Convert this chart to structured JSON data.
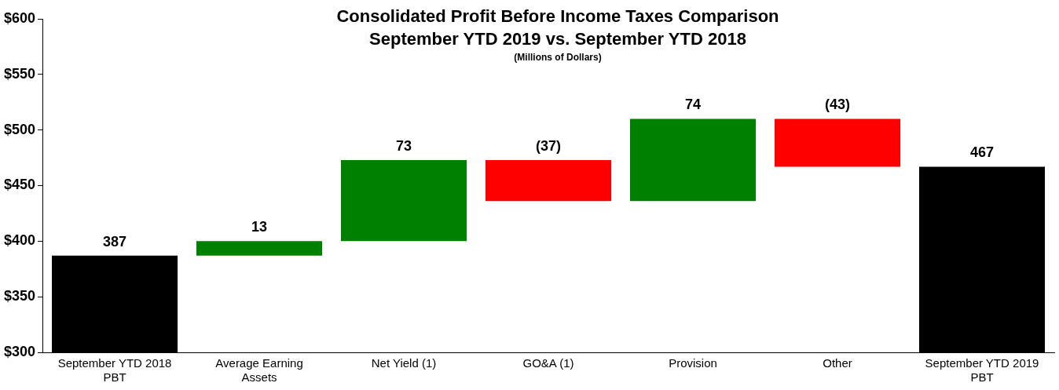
{
  "chart_data": {
    "type": "bar",
    "title": "Consolidated Profit Before Income Taxes Comparison",
    "subtitle": "September YTD 2019 vs. September YTD 2018",
    "annotations": [
      "(Millions of Dollars)"
    ],
    "categories": [
      "September YTD 2018 PBT",
      "Average Earning Assets",
      "Net Yield (1)",
      "GO&A (1)",
      "Provision",
      "Other",
      "September YTD 2019 PBT"
    ],
    "values": [
      387,
      13,
      73,
      -37,
      74,
      -43,
      467
    ],
    "base": [
      null,
      387,
      400,
      473,
      436,
      510,
      null
    ],
    "colors": [
      "#000000",
      "#008000",
      "#008000",
      "#ff0000",
      "#008000",
      "#ff0000",
      "#000000"
    ],
    "value_labels": [
      "387",
      "13",
      "73",
      "(37)",
      "74",
      "(43)",
      "467"
    ],
    "ylim": [
      300,
      600
    ],
    "yticks": [
      {
        "value": 300,
        "label": "$300"
      },
      {
        "value": 350,
        "label": "$350"
      },
      {
        "value": 400,
        "label": "$400"
      },
      {
        "value": 450,
        "label": "$450"
      },
      {
        "value": 500,
        "label": "$500"
      },
      {
        "value": 550,
        "label": "$550"
      },
      {
        "value": 600,
        "label": "$600"
      }
    ],
    "grid": false,
    "legend": false
  }
}
